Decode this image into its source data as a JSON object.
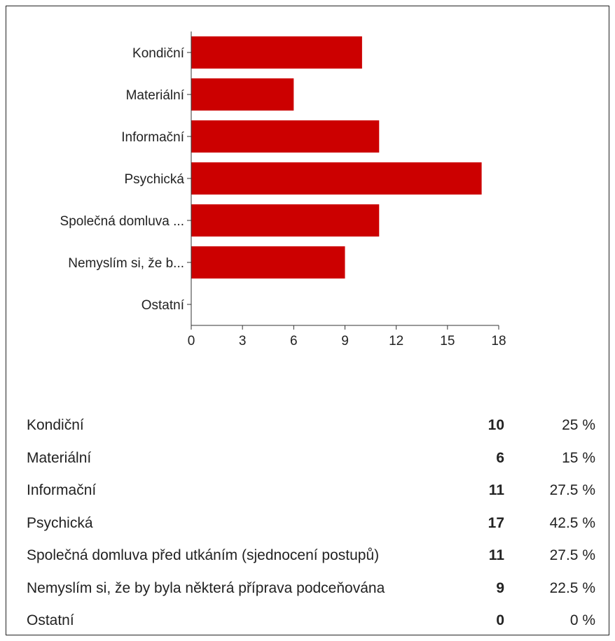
{
  "chart_data": {
    "type": "bar",
    "orientation": "horizontal",
    "categories": [
      "Kondiční",
      "Materiální",
      "Informační",
      "Psychická",
      "Společná domluva ...",
      "Nemyslím si, že b...",
      "Ostatní"
    ],
    "values": [
      10,
      6,
      11,
      17,
      11,
      9,
      0
    ],
    "xlim": [
      0,
      18
    ],
    "xticks": [
      "0",
      "3",
      "6",
      "9",
      "12",
      "15",
      "18"
    ],
    "bar_color": "#cc0000",
    "title": "",
    "xlabel": "",
    "ylabel": "",
    "grid": false
  },
  "summary": [
    {
      "label": "Kondiční",
      "count": "10",
      "percent": "25 %"
    },
    {
      "label": "Materiální",
      "count": "6",
      "percent": "15 %"
    },
    {
      "label": "Informační",
      "count": "11",
      "percent": "27.5 %"
    },
    {
      "label": "Psychická",
      "count": "17",
      "percent": "42.5 %"
    },
    {
      "label": "Společná domluva před utkáním (sjednocení postupů)",
      "count": "11",
      "percent": "27.5 %"
    },
    {
      "label": "Nemyslím si, že by byla některá příprava podceňována",
      "count": "9",
      "percent": "22.5 %"
    },
    {
      "label": "Ostatní",
      "count": "0",
      "percent": "0 %"
    }
  ]
}
